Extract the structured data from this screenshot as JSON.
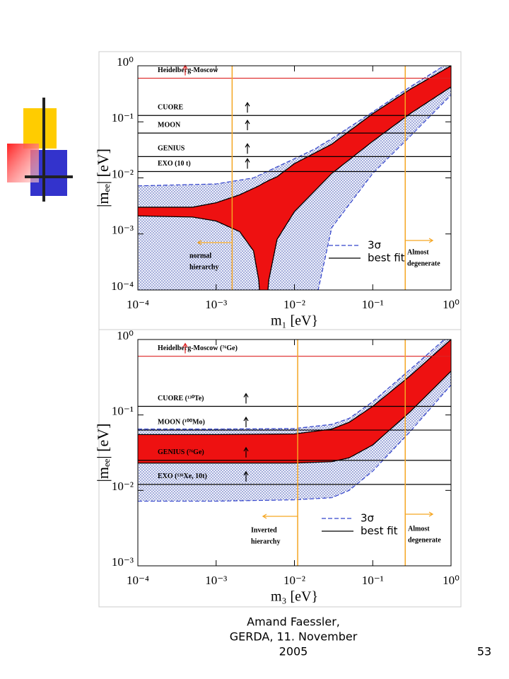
{
  "chart_data": [
    {
      "type": "line",
      "xlabel": "m₁ [eV}",
      "ylabel": "|mₑₑ| [eV]",
      "log_x": true,
      "log_y": true,
      "xlim": [
        0.0001,
        1
      ],
      "ylim": [
        0.0001,
        1
      ],
      "xticks": [
        {
          "value": 0.0001,
          "label": "10⁻⁴"
        },
        {
          "value": 0.001,
          "label": "10⁻³"
        },
        {
          "value": 0.01,
          "label": "10⁻²"
        },
        {
          "value": 0.1,
          "label": "10⁻¹"
        },
        {
          "value": 1,
          "label": "10⁰"
        }
      ],
      "yticks": [
        {
          "value": 0.0001,
          "label": "10⁻⁴"
        },
        {
          "value": 0.001,
          "label": "10⁻³"
        },
        {
          "value": 0.01,
          "label": "10⁻²"
        },
        {
          "value": 0.1,
          "label": "10⁻¹"
        },
        {
          "value": 1,
          "label": "10⁰"
        }
      ],
      "bands": [
        {
          "name": "3σ",
          "color": "#3344cc",
          "x": [
            0.0001,
            0.001,
            0.003,
            0.01,
            0.02,
            0.0201,
            0.03,
            0.1,
            0.3,
            1
          ],
          "upper": [
            0.0072,
            0.0078,
            0.01,
            0.022,
            0.035,
            0.036,
            0.05,
            0.15,
            0.42,
            1.2
          ],
          "lower": [
            1e-05,
            1e-05,
            1e-05,
            1e-05,
            1e-05,
            0.0001,
            0.0013,
            0.012,
            0.055,
            0.3
          ]
        },
        {
          "name": "best fit",
          "color": "#ee1111",
          "x": [
            0.0001,
            0.0005,
            0.001,
            0.002,
            0.003,
            0.0035,
            0.004,
            0.0047,
            0.006,
            0.01,
            0.03,
            0.1,
            0.3,
            1
          ],
          "upper": [
            0.003,
            0.003,
            0.0036,
            0.005,
            0.0065,
            0.0072,
            0.008,
            0.009,
            0.0105,
            0.018,
            0.04,
            0.14,
            0.38,
            1.0
          ],
          "lower": [
            0.0021,
            0.002,
            0.0017,
            0.0011,
            0.0005,
            0.00015,
            1e-05,
            0.00015,
            0.0008,
            0.0025,
            0.012,
            0.045,
            0.14,
            0.42
          ]
        }
      ],
      "hlines": [
        {
          "label": "Heidelberg-Moscow",
          "value": 0.6,
          "color": "#dd2222"
        },
        {
          "label": "CUORE",
          "value": 0.13,
          "color": "#000000"
        },
        {
          "label": "MOON",
          "value": 0.063,
          "color": "#000000"
        },
        {
          "label": "GENIUS",
          "value": 0.024,
          "color": "#000000"
        },
        {
          "label": "EXO (10 t)",
          "value": 0.013,
          "color": "#000000"
        }
      ],
      "vlines": [
        {
          "value": 0.0016,
          "color": "#f5a623"
        },
        {
          "value": 0.26,
          "color": "#f5a623"
        }
      ],
      "annotations": [
        [
          "normal",
          "hierarchy"
        ],
        [
          "Almost",
          "degenerate"
        ]
      ]
    },
    {
      "type": "line",
      "xlabel": "m₃ [eV}",
      "ylabel": "|mₑₑ| [eV]",
      "log_x": true,
      "log_y": true,
      "xlim": [
        0.0001,
        1
      ],
      "ylim": [
        0.001,
        1
      ],
      "xticks": [
        {
          "value": 0.0001,
          "label": "10⁻⁴"
        },
        {
          "value": 0.001,
          "label": "10⁻³"
        },
        {
          "value": 0.01,
          "label": "10⁻²"
        },
        {
          "value": 0.1,
          "label": "10⁻¹"
        },
        {
          "value": 1,
          "label": "10⁰"
        }
      ],
      "yticks": [
        {
          "value": 0.001,
          "label": "10⁻³"
        },
        {
          "value": 0.01,
          "label": "10⁻²"
        },
        {
          "value": 0.1,
          "label": "10⁻¹"
        },
        {
          "value": 1,
          "label": "10⁰"
        }
      ],
      "bands": [
        {
          "name": "3σ",
          "color": "#3344cc",
          "x": [
            0.0001,
            0.001,
            0.01,
            0.03,
            0.05,
            0.1,
            0.3,
            1
          ],
          "upper": [
            0.065,
            0.065,
            0.066,
            0.075,
            0.09,
            0.15,
            0.4,
            1.2
          ],
          "lower": [
            0.0072,
            0.0072,
            0.0075,
            0.008,
            0.01,
            0.018,
            0.06,
            0.25
          ]
        },
        {
          "name": "best fit",
          "color": "#ee1111",
          "x": [
            0.0001,
            0.001,
            0.01,
            0.03,
            0.05,
            0.1,
            0.3,
            1
          ],
          "upper": [
            0.055,
            0.055,
            0.056,
            0.065,
            0.08,
            0.13,
            0.33,
            1.0
          ],
          "lower": [
            0.023,
            0.023,
            0.023,
            0.024,
            0.027,
            0.04,
            0.11,
            0.38
          ]
        }
      ],
      "hlines": [
        {
          "label": "Heidelberg-Moscow (⁷⁶Ge)",
          "value": 0.6,
          "color": "#dd2222"
        },
        {
          "label": "CUORE (¹³⁰Te)",
          "value": 0.13,
          "color": "#000000"
        },
        {
          "label": "MOON (¹⁰⁰Mo)",
          "value": 0.063,
          "color": "#000000"
        },
        {
          "label": "GENIUS (⁷⁶Ge)",
          "value": 0.025,
          "color": "#000000"
        },
        {
          "label": "EXO (¹³⁶Xe, 10t)",
          "value": 0.012,
          "color": "#000000"
        }
      ],
      "vlines": [
        {
          "value": 0.011,
          "color": "#f5a623"
        },
        {
          "value": 0.26,
          "color": "#f5a623"
        }
      ],
      "annotations": [
        [
          "Inverted",
          "hierarchy"
        ],
        [
          "Almost",
          "degenerate"
        ]
      ]
    }
  ],
  "footer": [
    "Amand Faessler,",
    "GERDA, 11. November",
    "2005"
  ],
  "page_number": 53
}
